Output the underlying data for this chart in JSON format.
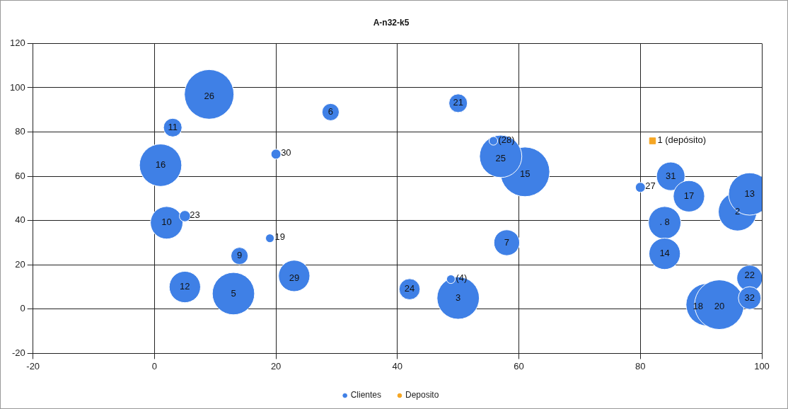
{
  "chart_data": {
    "type": "bubble",
    "title": "A-n32-k5",
    "xlim": [
      -20,
      100
    ],
    "xticks": [
      -20,
      0,
      20,
      40,
      60,
      80,
      100
    ],
    "ylim": [
      -20,
      120
    ],
    "yticks": [
      -20,
      0,
      20,
      40,
      60,
      80,
      100,
      120
    ],
    "grid": true,
    "legend": "bottom",
    "series": [
      {
        "name": "Clientes",
        "color": "#3f80e6",
        "x": [
          96,
          50,
          13,
          58,
          84,
          14,
          2,
          3,
          5,
          98,
          84,
          61,
          91,
          19,
          93,
          50,
          98,
          5,
          42,
          57,
          80,
          23,
          20,
          98,
          9,
          1,
          29,
          85,
          88,
          55.8,
          48.8
        ],
        "values": [
          44,
          5,
          7,
          30,
          39,
          24,
          39,
          82,
          10,
          52,
          25,
          62,
          2,
          32,
          2,
          93,
          14,
          42,
          9,
          69,
          55,
          15,
          70,
          5,
          97,
          65,
          89,
          60,
          51,
          76,
          13.5
        ],
        "sizes": [
          0.6,
          0.73,
          0.73,
          0.27,
          0.43,
          0.12,
          0.43,
          0.14,
          0.4,
          0.73,
          0.4,
          1,
          0.73,
          0.03,
          1,
          0.14,
          0.27,
          0.05,
          0.18,
          0.73,
          0.04,
          0.4,
          0.04,
          0.21,
          1,
          0.73,
          0.12,
          0.33,
          0.4,
          0.03,
          0.03
        ]
      },
      {
        "name": "Deposito",
        "color": "#f5a623",
        "type": "scatter",
        "marker": "square",
        "x": [
          82
        ],
        "values": [
          76
        ]
      }
    ],
    "annotations": [
      {
        "text": "2",
        "x": 96,
        "y": 44
      },
      {
        "text": "3",
        "x": 50,
        "y": 5
      },
      {
        "text": "5",
        "x": 13,
        "y": 7
      },
      {
        "text": "6",
        "x": 29,
        "y": 89
      },
      {
        "text": "7",
        "x": 58,
        "y": 30
      },
      {
        "text": ". 8",
        "x": 84,
        "y": 39
      },
      {
        "text": "9",
        "x": 14,
        "y": 24
      },
      {
        "text": "10",
        "x": 2,
        "y": 39
      },
      {
        "text": "11",
        "x": 3,
        "y": 82
      },
      {
        "text": "12",
        "x": 5,
        "y": 10
      },
      {
        "text": "13",
        "x": 98,
        "y": 52
      },
      {
        "text": "14",
        "x": 84,
        "y": 25
      },
      {
        "text": "15",
        "x": 61,
        "y": 61
      },
      {
        "text": "16",
        "x": 1,
        "y": 65
      },
      {
        "text": "17",
        "x": 88,
        "y": 51
      },
      {
        "text": "18",
        "x": 89.5,
        "y": 1
      },
      {
        "text": "19",
        "x": 19,
        "y": 32
      },
      {
        "text": "20",
        "x": 93,
        "y": 1
      },
      {
        "text": "21",
        "x": 50,
        "y": 93
      },
      {
        "text": "22",
        "x": 98,
        "y": 15
      },
      {
        "text": "23",
        "x": 5,
        "y": 42
      },
      {
        "text": "24",
        "x": 42,
        "y": 9
      },
      {
        "text": "25",
        "x": 57,
        "y": 68
      },
      {
        "text": "26",
        "x": 9,
        "y": 96
      },
      {
        "text": "27",
        "x": 80,
        "y": 55
      },
      {
        "text": "29",
        "x": 23,
        "y": 14
      },
      {
        "text": "30",
        "x": 20,
        "y": 70
      },
      {
        "text": "31",
        "x": 85,
        "y": 60
      },
      {
        "text": "32",
        "x": 98,
        "y": 5
      },
      {
        "text": "(28)",
        "x": 55.8,
        "y": 76
      },
      {
        "text": "(4)",
        "x": 48.8,
        "y": 13.5
      },
      {
        "text": "1 (depósito)",
        "x": 82,
        "y": 76
      }
    ]
  }
}
